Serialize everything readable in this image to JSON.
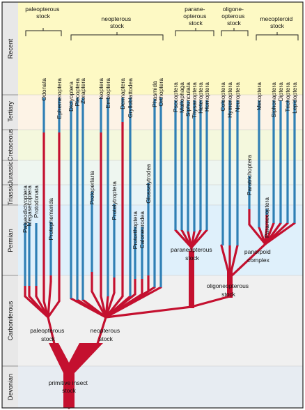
{
  "colors": {
    "red": "#c4102f",
    "blue": "#2f7fb5",
    "period_label_bg": "#e8e8e8",
    "recent_bg": "#fdf9c4",
    "tertiary_bg": "#fdf3e6",
    "cretaceous_bg": "#f4f8dd",
    "jurassic_bg": "#eef6f0",
    "triassic_bg": "#e8f4f6",
    "permian_bg": "#dff0fb",
    "carboniferous_bg": "#f0f0f0",
    "devonian_bg": "#e7ecf2"
  },
  "periods": [
    "Recent",
    "Tertiary",
    "Cretaceous",
    "Jurassic",
    "Triassic",
    "Permian",
    "Carboniferous",
    "Devonian"
  ],
  "top_groups": [
    {
      "line1": "paleopterous",
      "line2": "stock"
    },
    {
      "line1": "neopterous",
      "line2": "stock"
    },
    {
      "line1": "parane-",
      "line2": "opterous",
      "line3": "stock"
    },
    {
      "line1": "oligone-",
      "line2": "opterous",
      "line3": "stock"
    },
    {
      "line1": "mecopteroid",
      "line2": "stock"
    }
  ],
  "orders": [
    "Palaeodictyoptera",
    "Megasecoptera",
    "Protodonata",
    "Odonata",
    "Protephemerida",
    "Ephemeroptera",
    "Dictyoptera",
    "Plecoptera",
    "Zoraptera",
    "Protoperlaria",
    "Isoptera",
    "Embioptera",
    "Protelytroptera",
    "Dermaptera",
    "Grylloblattodea",
    "Protorthoptera",
    "Caloneurodea",
    "Glosselytrodea",
    "Phasmida",
    "Orthoptera",
    "Psocoptera",
    "Mallophaga",
    "Siphunculata",
    "Thysanoptera",
    "Heteroptera",
    "Homoptera",
    "Coleoptera",
    "Hymenoptera",
    "Neuroptera",
    "Paratrichoptera",
    "Mecoptera",
    "Paramecoptera",
    "Siphonaptera",
    "Diptera",
    "Trichoptera",
    "Lepidoptera"
  ],
  "stock_labels": {
    "paleopterous": {
      "line1": "paleopterous",
      "line2": "stock"
    },
    "neopterous": {
      "line1": "neopterous",
      "line2": "stock"
    },
    "paraneopterous": {
      "line1": "paraneopterous",
      "line2": "stock"
    },
    "oligoneopterous": {
      "line1": "oligoneopterous",
      "line2": "stock"
    },
    "panorpoid": {
      "line1": "panorpoid",
      "line2": "complex"
    },
    "primitive": {
      "line1": "primitive insect",
      "line2": "stock"
    }
  }
}
